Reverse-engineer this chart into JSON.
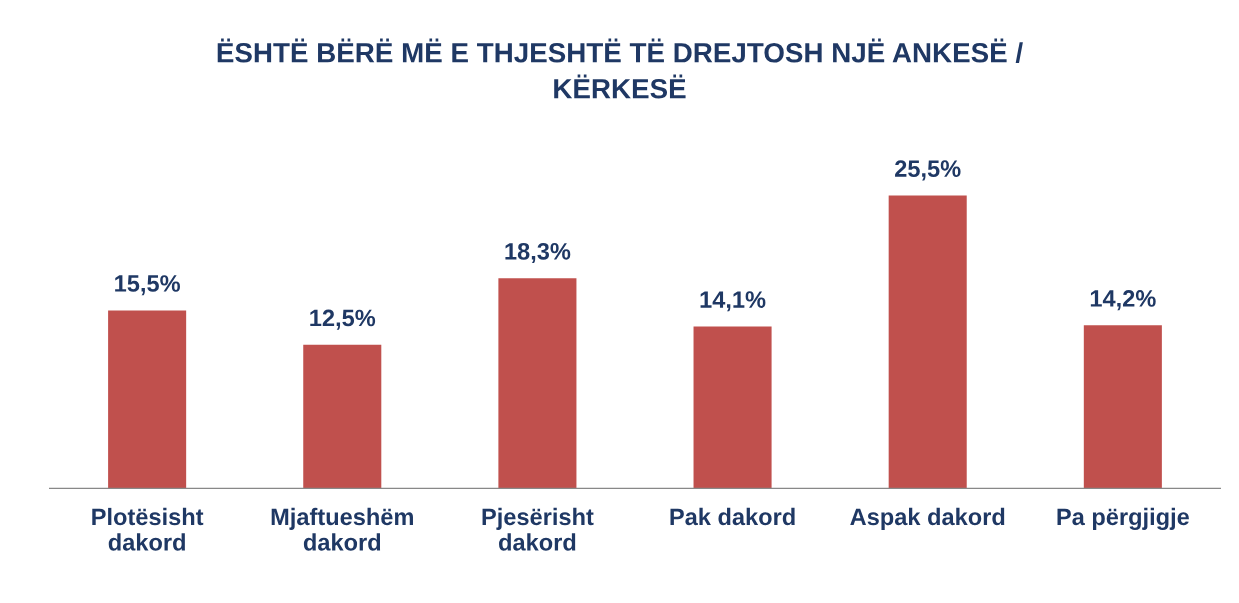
{
  "chart_data": {
    "type": "bar",
    "title": "ËSHTË BËRË MË E THJESHTË TË DREJTOSH NJË ANKESË /\nKËRKESË",
    "categories": [
      "Plotësisht\ndakord",
      "Mjaftueshëm\ndakord",
      "Pjesërisht\ndakord",
      "Pak dakord",
      "Aspak dakord",
      "Pa përgjigje"
    ],
    "values": [
      15.5,
      12.5,
      18.3,
      14.1,
      25.5,
      14.2
    ],
    "value_labels": [
      "15,5%",
      "12,5%",
      "18,3%",
      "14,1%",
      "25,5%",
      "14,2%"
    ],
    "color": "#c0504d",
    "grid": false,
    "legend": false
  }
}
